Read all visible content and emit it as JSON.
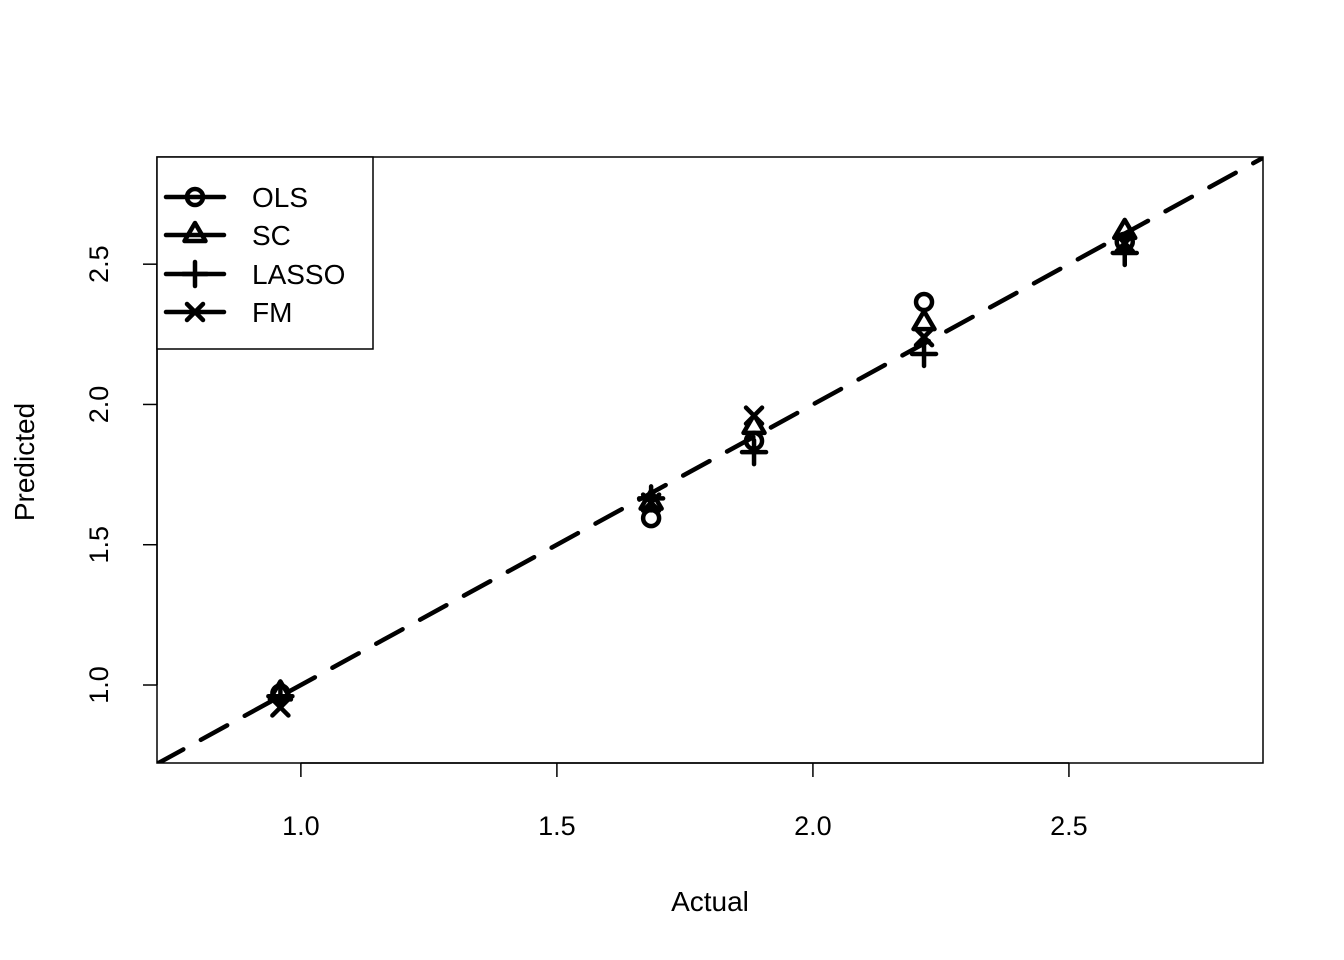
{
  "chart_data": {
    "type": "scatter",
    "title": "",
    "xlabel": "Actual",
    "ylabel": "Predicted",
    "xlim": [
      0.719,
      2.879
    ],
    "ylim": [
      0.722,
      2.882
    ],
    "xticks": [
      1.0,
      1.5,
      2.0,
      2.5
    ],
    "yticks": [
      1.0,
      1.5,
      2.0,
      2.5
    ],
    "xtick_labels": [
      "1.0",
      "1.5",
      "2.0",
      "2.5"
    ],
    "ytick_labels": [
      "1.0",
      "1.5",
      "2.0",
      "2.5"
    ],
    "grid": false,
    "legend_position": "top-left",
    "x": [
      0.96,
      1.684,
      1.885,
      2.217,
      2.609
    ],
    "series": [
      {
        "name": "OLS",
        "marker": "circle",
        "values": [
          0.97,
          1.595,
          1.87,
          2.365,
          2.58
        ]
      },
      {
        "name": "SC",
        "marker": "triangle",
        "values": [
          0.97,
          1.65,
          1.92,
          2.29,
          2.615
        ]
      },
      {
        "name": "LASSO",
        "marker": "plus",
        "values": [
          0.96,
          1.665,
          1.83,
          2.18,
          2.54
        ]
      },
      {
        "name": "FM",
        "marker": "cross",
        "values": [
          0.92,
          1.65,
          1.96,
          2.24,
          2.575
        ]
      }
    ],
    "reference_line": {
      "label": "y = x",
      "style": "dashed"
    },
    "color": "#000000"
  }
}
